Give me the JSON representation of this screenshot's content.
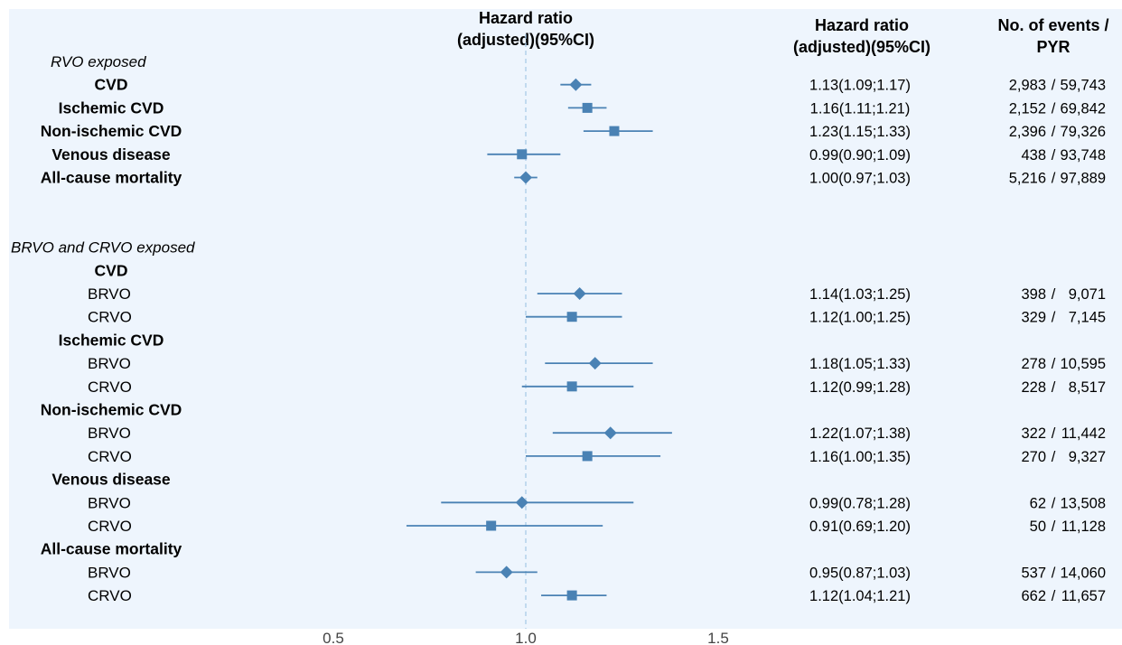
{
  "colors": {
    "background": "#EEF5FD",
    "marker": "#4A82B4",
    "reference_line": "#A9CBE8",
    "text": "#000000"
  },
  "chart_data": {
    "type": "forest",
    "headers": {
      "plot_title_line1": "Hazard ratio",
      "plot_title_line2": "(adjusted)(95%CI)",
      "hr_col_line1": "Hazard ratio",
      "hr_col_line2": "(adjusted)(95%CI)",
      "events_col_line1": "No. of events /",
      "events_col_line2": "PYR"
    },
    "x_ticks": [
      0.5,
      1.0,
      1.5
    ],
    "x_tick_labels": [
      "0.5",
      "1.0",
      "1.5"
    ],
    "xlim": [
      0.42,
      1.58
    ],
    "reference_value": 1.0,
    "rows": [
      {
        "label": "RVO exposed",
        "style": "section"
      },
      {
        "label": "CVD",
        "style": "bold",
        "hr": 1.13,
        "lo": 1.09,
        "hi": 1.17,
        "marker": "diamond",
        "ci_text": "1.13(1.09;1.17)",
        "events": "2,983",
        "pyr": "59,743"
      },
      {
        "label": "Ischemic CVD",
        "style": "bold",
        "hr": 1.16,
        "lo": 1.11,
        "hi": 1.21,
        "marker": "square",
        "ci_text": "1.16(1.11;1.21)",
        "events": "2,152",
        "pyr": "69,842"
      },
      {
        "label": "Non-ischemic CVD",
        "style": "bold",
        "hr": 1.23,
        "lo": 1.15,
        "hi": 1.33,
        "marker": "square",
        "ci_text": "1.23(1.15;1.33)",
        "events": "2,396",
        "pyr": "79,326"
      },
      {
        "label": "Venous disease",
        "style": "bold",
        "hr": 0.99,
        "lo": 0.9,
        "hi": 1.09,
        "marker": "square",
        "ci_text": "0.99(0.90;1.09)",
        "events": "438",
        "pyr": "93,748"
      },
      {
        "label": "All-cause mortality",
        "style": "bold",
        "hr": 1.0,
        "lo": 0.97,
        "hi": 1.03,
        "marker": "diamond",
        "ci_text": "1.00(0.97;1.03)",
        "events": "5,216",
        "pyr": "97,889"
      },
      {
        "label": "",
        "style": "blank"
      },
      {
        "label": "",
        "style": "blank"
      },
      {
        "label": "BRVO and CRVO exposed",
        "style": "section"
      },
      {
        "label": "CVD",
        "style": "bold"
      },
      {
        "label": "BRVO",
        "style": "sub",
        "hr": 1.14,
        "lo": 1.03,
        "hi": 1.25,
        "marker": "diamond",
        "ci_text": "1.14(1.03;1.25)",
        "events": "398",
        "pyr": "9,071"
      },
      {
        "label": "CRVO",
        "style": "sub",
        "hr": 1.12,
        "lo": 1.0,
        "hi": 1.25,
        "marker": "square",
        "ci_text": "1.12(1.00;1.25)",
        "events": "329",
        "pyr": "7,145"
      },
      {
        "label": "Ischemic CVD",
        "style": "bold"
      },
      {
        "label": "BRVO",
        "style": "sub",
        "hr": 1.18,
        "lo": 1.05,
        "hi": 1.33,
        "marker": "diamond",
        "ci_text": "1.18(1.05;1.33)",
        "events": "278",
        "pyr": "10,595"
      },
      {
        "label": "CRVO",
        "style": "sub",
        "hr": 1.12,
        "lo": 0.99,
        "hi": 1.28,
        "marker": "square",
        "ci_text": "1.12(0.99;1.28)",
        "events": "228",
        "pyr": "8,517"
      },
      {
        "label": "Non-ischemic CVD",
        "style": "bold"
      },
      {
        "label": "BRVO",
        "style": "sub",
        "hr": 1.22,
        "lo": 1.07,
        "hi": 1.38,
        "marker": "diamond",
        "ci_text": "1.22(1.07;1.38)",
        "events": "322",
        "pyr": "11,442"
      },
      {
        "label": "CRVO",
        "style": "sub",
        "hr": 1.16,
        "lo": 1.0,
        "hi": 1.35,
        "marker": "square",
        "ci_text": "1.16(1.00;1.35)",
        "events": "270",
        "pyr": "9,327"
      },
      {
        "label": "Venous disease",
        "style": "bold"
      },
      {
        "label": "BRVO",
        "style": "sub",
        "hr": 0.99,
        "lo": 0.78,
        "hi": 1.28,
        "marker": "diamond",
        "ci_text": "0.99(0.78;1.28)",
        "events": "62",
        "pyr": "13,508"
      },
      {
        "label": "CRVO",
        "style": "sub",
        "hr": 0.91,
        "lo": 0.69,
        "hi": 1.2,
        "marker": "square",
        "ci_text": "0.91(0.69;1.20)",
        "events": "50",
        "pyr": "11,128"
      },
      {
        "label": "All-cause mortality",
        "style": "bold"
      },
      {
        "label": "BRVO",
        "style": "sub",
        "hr": 0.95,
        "lo": 0.87,
        "hi": 1.03,
        "marker": "diamond",
        "ci_text": "0.95(0.87;1.03)",
        "events": "537",
        "pyr": "14,060"
      },
      {
        "label": "CRVO",
        "style": "sub",
        "hr": 1.12,
        "lo": 1.04,
        "hi": 1.21,
        "marker": "square",
        "ci_text": "1.12(1.04;1.21)",
        "events": "662",
        "pyr": "11,657"
      }
    ]
  }
}
